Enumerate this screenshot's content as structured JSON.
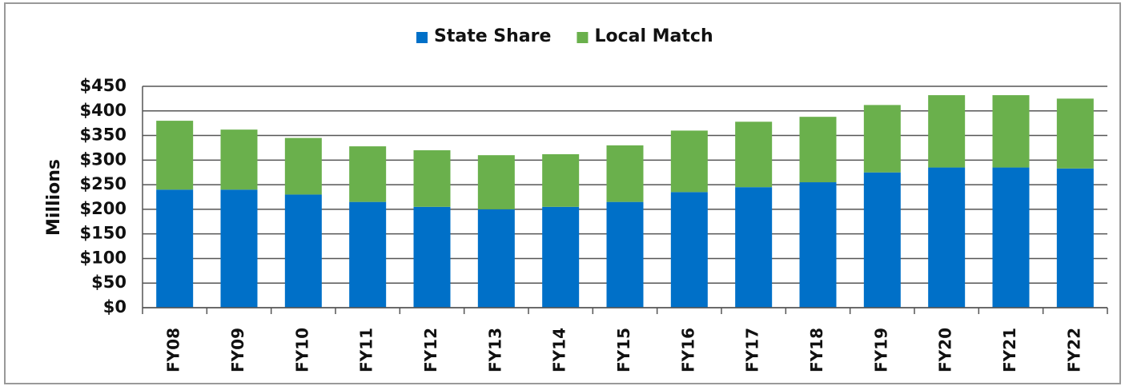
{
  "chart_data": {
    "type": "stacked_bar",
    "y_label": "Millions",
    "categories": [
      "FY08",
      "FY09",
      "FY10",
      "FY11",
      "FY12",
      "FY13",
      "FY14",
      "FY15",
      "FY16",
      "FY17",
      "FY18",
      "FY19",
      "FY20",
      "FY21",
      "FY22"
    ],
    "series": [
      {
        "name": "State Share",
        "color": "#0070c8",
        "values": [
          240,
          240,
          230,
          215,
          205,
          200,
          205,
          215,
          235,
          245,
          255,
          275,
          285,
          285,
          283
        ]
      },
      {
        "name": "Local Match",
        "color": "#6ab04c",
        "values": [
          140,
          122,
          115,
          113,
          115,
          110,
          107,
          115,
          125,
          133,
          133,
          137,
          147,
          147,
          142
        ]
      }
    ],
    "ylim": [
      0,
      450
    ],
    "yticks": [
      {
        "value": 0,
        "label": "$0"
      },
      {
        "value": 50,
        "label": "$50"
      },
      {
        "value": 100,
        "label": "$100"
      },
      {
        "value": 150,
        "label": "$150"
      },
      {
        "value": 200,
        "label": "$200"
      },
      {
        "value": 250,
        "label": "$250"
      },
      {
        "value": 300,
        "label": "$300"
      },
      {
        "value": 350,
        "label": "$350"
      },
      {
        "value": 400,
        "label": "$400"
      },
      {
        "value": 450,
        "label": "$450"
      }
    ],
    "grid": true
  }
}
